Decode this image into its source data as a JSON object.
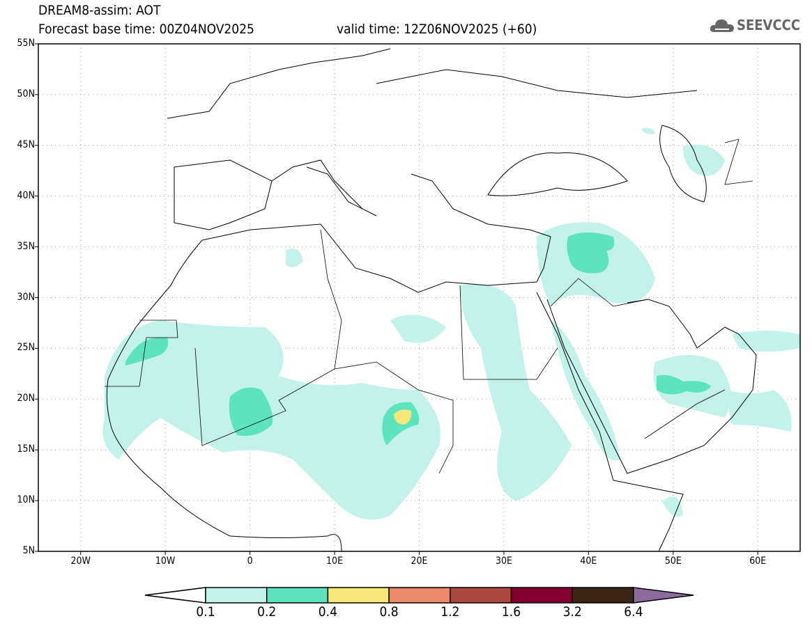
{
  "header": {
    "title": "DREAM8-assim: AOT",
    "base_time": "Forecast base time: 00Z04NOV2025",
    "valid_time": "valid time: 12Z06NOV2025 (+60)"
  },
  "logo": {
    "text": "SEEVCCC",
    "icon": "cloud-icon"
  },
  "map": {
    "lat_labels": [
      "55N",
      "50N",
      "45N",
      "40N",
      "35N",
      "30N",
      "25N",
      "20N",
      "15N",
      "10N",
      "5N"
    ],
    "lon_labels": [
      "20W",
      "10W",
      "0",
      "10E",
      "20E",
      "30E",
      "40E",
      "50E",
      "60E"
    ]
  },
  "colorbar": {
    "labels": [
      "0.1",
      "0.2",
      "0.4",
      "0.8",
      "1.2",
      "1.6",
      "3.2",
      "6.4"
    ],
    "colors": [
      "#ffffff",
      "#c3f2ea",
      "#5de3bd",
      "#f8e87a",
      "#ea8a6a",
      "#aa473f",
      "#810030",
      "#3a2416",
      "#8e6b9e"
    ]
  }
}
